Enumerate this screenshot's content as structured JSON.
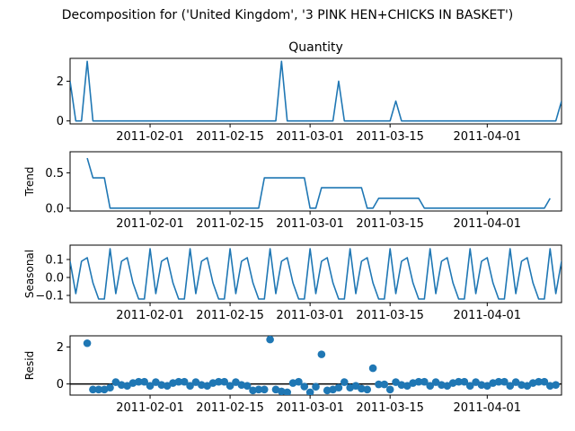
{
  "figure": {
    "title": "Decomposition for ('United Kingdom', '3 PINK HEN+CHICKS IN BASKET')",
    "line_color": "#1f77b4",
    "zero_line_color": "#000000"
  },
  "chart_data": [
    {
      "type": "line",
      "panel": "observed",
      "title": "Quantity",
      "ylabel": "",
      "x_start": "2011-01-18",
      "x_end": "2011-04-14",
      "xlim": [
        "2011-01-18",
        "2011-04-14"
      ],
      "ylim": [
        -0.15,
        3.15
      ],
      "yticks": [
        0,
        2
      ],
      "ytick_labels": [
        "0",
        "2"
      ],
      "xticks": [
        "2011-02-01",
        "2011-02-15",
        "2011-03-01",
        "2011-03-15",
        "2011-04-01"
      ],
      "grid": false,
      "series": [
        {
          "values": [
            2,
            0,
            0,
            3,
            0,
            0,
            0,
            0,
            0,
            0,
            0,
            0,
            0,
            0,
            0,
            0,
            0,
            0,
            0,
            0,
            0,
            0,
            0,
            0,
            0,
            0,
            0,
            0,
            0,
            0,
            0,
            0,
            0,
            0,
            0,
            0,
            0,
            3,
            0,
            0,
            0,
            0,
            0,
            0,
            0,
            0,
            0,
            2,
            0,
            0,
            0,
            0,
            0,
            0,
            0,
            0,
            0,
            1,
            0,
            0,
            0,
            0,
            0,
            0,
            0,
            0,
            0,
            0,
            0,
            0,
            0,
            0,
            0,
            0,
            0,
            0,
            0,
            0,
            0,
            0,
            0,
            0,
            0,
            0,
            0,
            0,
            1
          ]
        }
      ]
    },
    {
      "type": "line",
      "panel": "trend",
      "title": "",
      "ylabel": "Trend",
      "x_start": "2011-01-18",
      "xlim": [
        "2011-01-18",
        "2011-04-14"
      ],
      "ylim": [
        -0.04,
        0.8
      ],
      "yticks": [
        0.0,
        0.5
      ],
      "ytick_labels": [
        "0.0",
        "0.5"
      ],
      "xticks": [
        "2011-02-01",
        "2011-02-15",
        "2011-03-01",
        "2011-03-15",
        "2011-04-01"
      ],
      "grid": false,
      "series": [
        {
          "values": [
            null,
            null,
            null,
            0.71,
            0.43,
            0.43,
            0.43,
            0,
            0,
            0,
            0,
            0,
            0,
            0,
            0,
            0,
            0,
            0,
            0,
            0,
            0,
            0,
            0,
            0,
            0,
            0,
            0,
            0,
            0,
            0,
            0,
            0,
            0,
            0,
            0.43,
            0.43,
            0.43,
            0.43,
            0.43,
            0.43,
            0.43,
            0.43,
            0,
            0,
            0.29,
            0.29,
            0.29,
            0.29,
            0.29,
            0.29,
            0.29,
            0.29,
            0,
            0,
            0.14,
            0.14,
            0.14,
            0.14,
            0.14,
            0.14,
            0.14,
            0.14,
            0,
            0,
            0,
            0,
            0,
            0,
            0,
            0,
            0,
            0,
            0,
            0,
            0,
            0,
            0,
            0,
            0,
            0,
            0,
            0,
            0,
            0,
            0.14,
            null,
            null,
            null
          ]
        }
      ]
    },
    {
      "type": "line",
      "panel": "seasonal",
      "title": "",
      "ylabel": "Seasonal",
      "x_start": "2011-01-18",
      "xlim": [
        "2011-01-18",
        "2011-04-14"
      ],
      "ylim": [
        -0.14,
        0.18
      ],
      "yticks": [
        -0.1,
        0.0,
        0.1
      ],
      "ytick_labels": [
        "−0.1",
        "0.0",
        "0.1"
      ],
      "xticks": [
        "2011-02-01",
        "2011-02-15",
        "2011-03-01",
        "2011-03-15",
        "2011-04-01"
      ],
      "grid": false,
      "series": [
        {
          "values": [
            0.09,
            -0.09,
            0.09,
            0.11,
            -0.03,
            -0.12,
            -0.12,
            0.16,
            -0.09,
            0.09,
            0.11,
            -0.03,
            -0.12,
            -0.12,
            0.16,
            -0.09,
            0.09,
            0.11,
            -0.03,
            -0.12,
            -0.12,
            0.16,
            -0.09,
            0.09,
            0.11,
            -0.03,
            -0.12,
            -0.12,
            0.16,
            -0.09,
            0.09,
            0.11,
            -0.03,
            -0.12,
            -0.12,
            0.16,
            -0.09,
            0.09,
            0.11,
            -0.03,
            -0.12,
            -0.12,
            0.16,
            -0.09,
            0.09,
            0.11,
            -0.03,
            -0.12,
            -0.12,
            0.16,
            -0.09,
            0.09,
            0.11,
            -0.03,
            -0.12,
            -0.12,
            0.16,
            -0.09,
            0.09,
            0.11,
            -0.03,
            -0.12,
            -0.12,
            0.16,
            -0.09,
            0.09,
            0.11,
            -0.03,
            -0.12,
            -0.12,
            0.16,
            -0.09,
            0.09,
            0.11,
            -0.03,
            -0.12,
            -0.12,
            0.16,
            -0.09,
            0.09,
            0.11,
            -0.03,
            -0.12,
            -0.12,
            0.16,
            -0.09,
            0.09,
            0.11,
            -0.03
          ]
        }
      ]
    },
    {
      "type": "scatter",
      "panel": "resid",
      "title": "",
      "ylabel": "Resid",
      "x_start": "2011-01-18",
      "xlim": [
        "2011-01-18",
        "2011-04-14"
      ],
      "ylim": [
        -0.6,
        2.6
      ],
      "yticks": [
        0,
        2
      ],
      "ytick_labels": [
        "0",
        "2"
      ],
      "xticks": [
        "2011-02-01",
        "2011-02-15",
        "2011-03-01",
        "2011-03-15",
        "2011-04-01"
      ],
      "zero_line": true,
      "grid": false,
      "series": [
        {
          "values": [
            null,
            null,
            null,
            2.2,
            -0.3,
            -0.3,
            -0.3,
            -0.2,
            0.1,
            -0.05,
            -0.1,
            0.05,
            0.12,
            0.12,
            -0.1,
            0.1,
            -0.05,
            -0.1,
            0.05,
            0.12,
            0.12,
            -0.1,
            0.1,
            -0.05,
            -0.1,
            0.05,
            0.12,
            0.12,
            -0.1,
            0.1,
            -0.05,
            -0.1,
            -0.35,
            -0.3,
            -0.3,
            2.4,
            -0.3,
            -0.4,
            -0.45,
            0.05,
            0.12,
            -0.14,
            -0.45,
            -0.15,
            1.6,
            -0.35,
            -0.3,
            -0.2,
            0.1,
            -0.2,
            -0.1,
            -0.25,
            -0.3,
            0.85,
            -0.02,
            -0.02,
            -0.3,
            0.1,
            -0.05,
            -0.1,
            0.05,
            0.12,
            0.12,
            -0.1,
            0.1,
            -0.05,
            -0.1,
            0.05,
            0.12,
            0.12,
            -0.1,
            0.1,
            -0.05,
            -0.1,
            0.05,
            0.12,
            0.12,
            -0.1,
            0.1,
            -0.05,
            -0.1,
            0.05,
            0.12,
            0.12,
            -0.1,
            -0.05,
            null,
            null,
            null
          ]
        }
      ]
    }
  ]
}
